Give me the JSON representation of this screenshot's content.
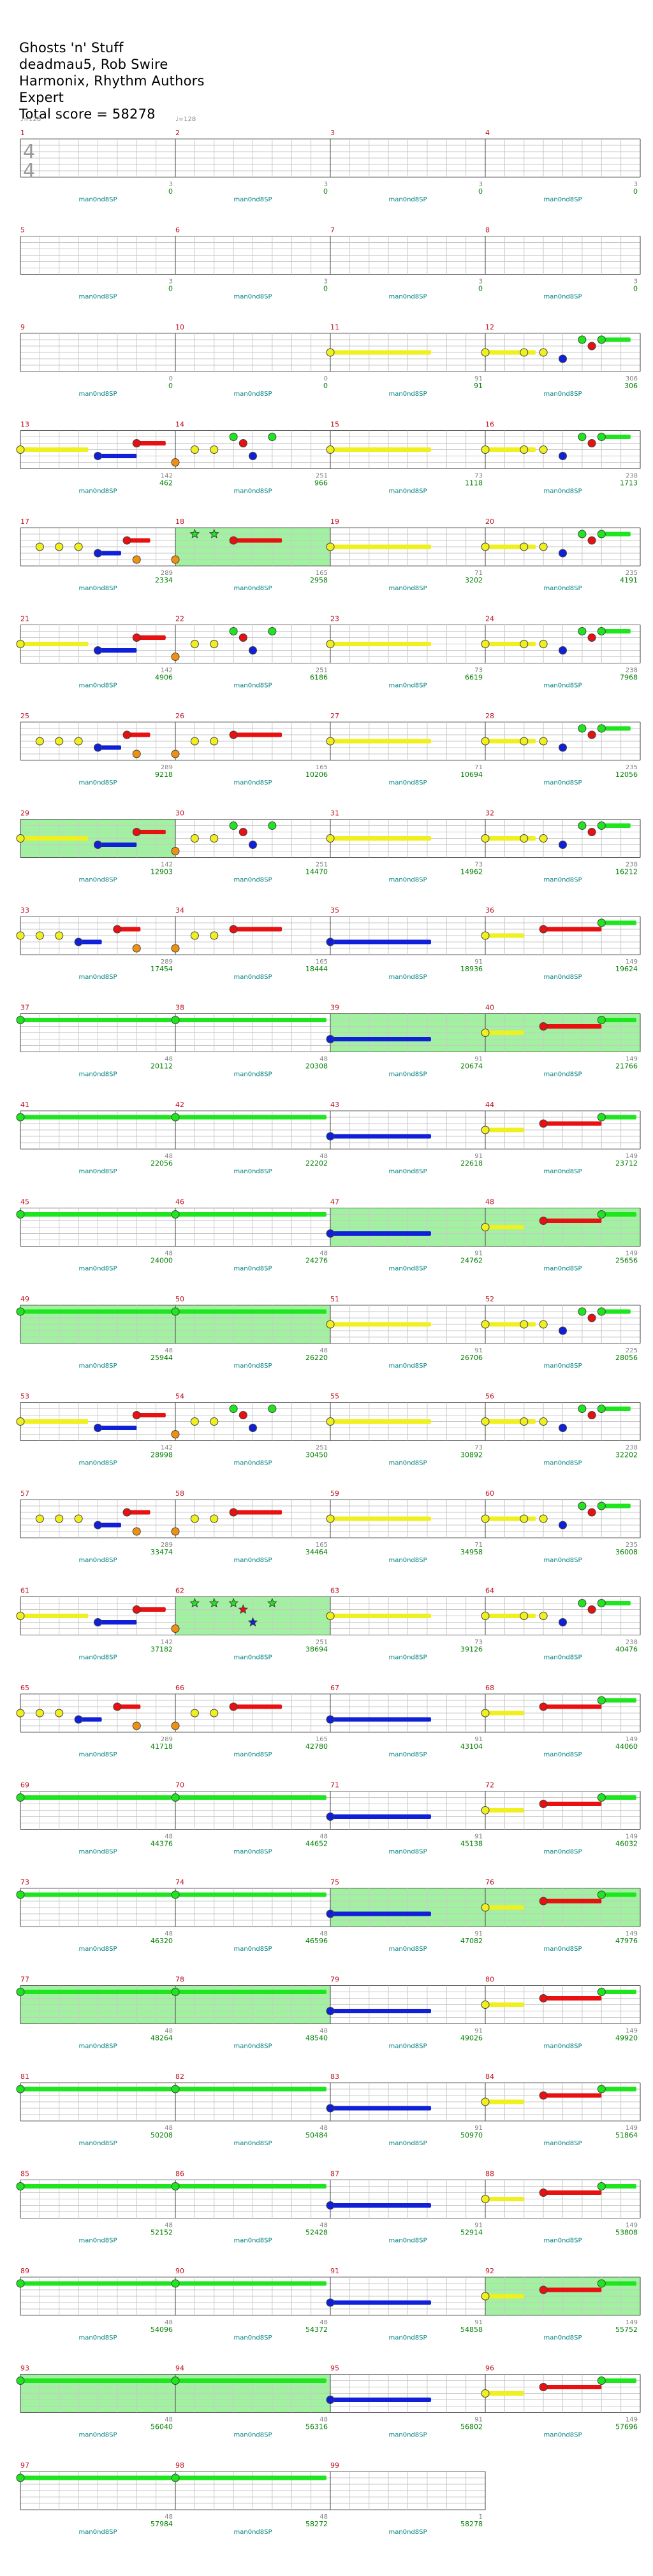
{
  "header": {
    "title": "Ghosts 'n' Stuff",
    "artist": "deadmau5, Rob Swire",
    "authors": "Harmonix, Rhythm Authors",
    "difficulty": "Expert",
    "total_score": "Total score = 58278"
  },
  "time_signature": [
    "4",
    "4"
  ],
  "tempo_label": "♩=128",
  "tempo_marks_measures": [
    1,
    2
  ],
  "notation_label": "man0nd8SP",
  "colors": {
    "green": "#1ee61e",
    "red": "#e81010",
    "yellow": "#f0f020",
    "blue": "#1020d8",
    "orange": "#f09010",
    "sp": "#90ee90",
    "measure_number": "#c01020",
    "score": "#008000",
    "label": "#008080",
    "extra": "#808080",
    "lines": "#606060",
    "grid": "#c8c8c8"
  },
  "patterns": {
    "blank": [],
    "intro": [
      {
        "t": 0,
        "c": "yellow",
        "s": 1.75
      },
      {
        "t": 2,
        "c": "blue",
        "s": 1
      },
      {
        "t": 3,
        "c": "red",
        "s": 0.75
      }
    ],
    "riff_a": [
      {
        "t": 0,
        "c": "yellow",
        "s": 1.3
      },
      {
        "t": 1,
        "c": "yellow"
      },
      {
        "t": 1.5,
        "c": "yellow"
      },
      {
        "t": 2,
        "c": "blue"
      },
      {
        "t": 2.5,
        "c": "green"
      },
      {
        "t": 2.75,
        "c": "red"
      },
      {
        "t": 3,
        "c": "green",
        "s": 0.75
      }
    ],
    "riff_b": [
      {
        "t": 0,
        "c": "yellow",
        "s": 1.2
      },
      {
        "t": 1.5,
        "c": "blue",
        "s": 0.6
      },
      {
        "t": 2.5,
        "c": "red",
        "s": 0.6
      },
      {
        "t": 3,
        "c": "orange"
      }
    ],
    "riff_c": [
      {
        "t": 0.5,
        "c": "yellow"
      },
      {
        "t": 1,
        "c": "yellow"
      },
      {
        "t": 1.5,
        "c": "yellow"
      },
      {
        "t": 2,
        "c": "blue",
        "s": 0.6
      },
      {
        "t": 2.75,
        "c": "red",
        "s": 0.6
      },
      {
        "t": 3,
        "c": "orange"
      }
    ],
    "riff_d": [
      {
        "t": 0,
        "c": "orange"
      },
      {
        "t": 0.5,
        "c": "yellow"
      },
      {
        "t": 1,
        "c": "yellow"
      },
      {
        "t": 1.5,
        "c": "green"
      },
      {
        "t": 1.75,
        "c": "red"
      },
      {
        "t": 2,
        "c": "blue"
      },
      {
        "t": 2.5,
        "c": "green"
      }
    ],
    "riff_e": [
      {
        "t": 0,
        "c": "yellow"
      },
      {
        "t": 0.5,
        "c": "yellow"
      },
      {
        "t": 1,
        "c": "yellow"
      },
      {
        "t": 1.5,
        "c": "blue",
        "s": 0.6
      },
      {
        "t": 2.5,
        "c": "red",
        "s": 0.6
      },
      {
        "t": 3,
        "c": "orange"
      }
    ],
    "riff_f": [
      {
        "t": 0,
        "c": "orange"
      },
      {
        "t": 0.5,
        "c": "yellow"
      },
      {
        "t": 1,
        "c": "yellow"
      },
      {
        "t": 1.5,
        "c": "red",
        "s": 1.25
      }
    ],
    "sustain_yellow": [
      {
        "t": 0,
        "c": "yellow",
        "s": 2.6
      }
    ],
    "sustain_blue": [
      {
        "t": 0,
        "c": "blue",
        "s": 2.6
      }
    ],
    "green_long": [
      {
        "t": 0,
        "c": "green",
        "s": 3.9
      }
    ],
    "climb": [
      {
        "t": 0,
        "c": "yellow",
        "s": 1
      },
      {
        "t": 1.5,
        "c": "red",
        "s": 1.5
      },
      {
        "t": 3,
        "c": "green",
        "s": 0.9
      }
    ],
    "sp_riff": [
      {
        "t": 0,
        "c": "orange"
      },
      {
        "t": 0.5,
        "c": "green",
        "star": 1
      },
      {
        "t": 1,
        "c": "green",
        "star": 1
      },
      {
        "t": 1.5,
        "c": "red",
        "s": 1.25
      }
    ],
    "sp_riff2": [
      {
        "t": 0,
        "c": "orange"
      },
      {
        "t": 0.5,
        "c": "green",
        "star": 1
      },
      {
        "t": 1,
        "c": "green",
        "star": 1
      },
      {
        "t": 1.5,
        "c": "green",
        "star": 1
      },
      {
        "t": 1.75,
        "c": "red",
        "star": 1
      },
      {
        "t": 2,
        "c": "blue",
        "star": 1
      },
      {
        "t": 2.5,
        "c": "green",
        "star": 1
      }
    ]
  },
  "rows": [
    {
      "measures": [
        {
          "n": "1",
          "p": "blank",
          "e": "3",
          "sc": "0",
          "tsig": true
        },
        {
          "n": "2",
          "p": "blank",
          "e": "3",
          "sc": "0"
        },
        {
          "n": "3",
          "p": "blank",
          "e": "3",
          "sc": "0"
        },
        {
          "n": "4",
          "p": "blank",
          "e": "3",
          "sc": "0"
        }
      ]
    },
    {
      "measures": [
        {
          "n": "5",
          "p": "blank",
          "e": "3",
          "sc": "0"
        },
        {
          "n": "6",
          "p": "blank",
          "e": "3",
          "sc": "0"
        },
        {
          "n": "7",
          "p": "blank",
          "e": "3",
          "sc": "0"
        },
        {
          "n": "8",
          "p": "blank",
          "e": "3",
          "sc": "0"
        }
      ]
    },
    {
      "measures": [
        {
          "n": "9",
          "p": "blank",
          "e": "0",
          "sc": "0"
        },
        {
          "n": "10",
          "p": "blank",
          "e": "0",
          "sc": "0"
        },
        {
          "n": "11",
          "p": "sustain_yellow",
          "e": "91",
          "sc": "91"
        },
        {
          "n": "12",
          "p": "riff_a",
          "e": "306",
          "sc": "306"
        }
      ]
    },
    {
      "measures": [
        {
          "n": "13",
          "p": "intro",
          "e": "142",
          "sc": "462"
        },
        {
          "n": "14",
          "p": "riff_d",
          "e": "251",
          "sc": "966"
        },
        {
          "n": "15",
          "p": "sustain_yellow",
          "e": "73",
          "sc": "1118"
        },
        {
          "n": "16",
          "p": "riff_a",
          "e": "238",
          "sc": "1713"
        }
      ]
    },
    {
      "measures": [
        {
          "n": "17",
          "p": "riff_c",
          "e": "289",
          "sc": "2334"
        },
        {
          "n": "18",
          "p": "sp_riff",
          "e": "165",
          "sc": "2958",
          "sp": true
        },
        {
          "n": "19",
          "p": "sustain_yellow",
          "e": "71",
          "sc": "3202"
        },
        {
          "n": "20",
          "p": "riff_a",
          "e": "235",
          "sc": "4191"
        }
      ]
    },
    {
      "measures": [
        {
          "n": "21",
          "p": "intro",
          "e": "142",
          "sc": "4906"
        },
        {
          "n": "22",
          "p": "riff_d",
          "e": "251",
          "sc": "6186"
        },
        {
          "n": "23",
          "p": "sustain_yellow",
          "e": "73",
          "sc": "6619"
        },
        {
          "n": "24",
          "p": "riff_a",
          "e": "238",
          "sc": "7968"
        }
      ]
    },
    {
      "measures": [
        {
          "n": "25",
          "p": "riff_c",
          "e": "289",
          "sc": "9218"
        },
        {
          "n": "26",
          "p": "riff_f",
          "e": "165",
          "sc": "10206"
        },
        {
          "n": "27",
          "p": "sustain_yellow",
          "e": "71",
          "sc": "10694"
        },
        {
          "n": "28",
          "p": "riff_a",
          "e": "235",
          "sc": "12056"
        }
      ]
    },
    {
      "measures": [
        {
          "n": "29",
          "p": "intro",
          "e": "142",
          "sc": "12903",
          "sp": true
        },
        {
          "n": "30",
          "p": "riff_d",
          "e": "251",
          "sc": "14470"
        },
        {
          "n": "31",
          "p": "sustain_yellow",
          "e": "73",
          "sc": "14962"
        },
        {
          "n": "32",
          "p": "riff_a",
          "e": "238",
          "sc": "16212"
        }
      ]
    },
    {
      "measures": [
        {
          "n": "33",
          "p": "riff_e",
          "e": "289",
          "sc": "17454"
        },
        {
          "n": "34",
          "p": "riff_f",
          "e": "165",
          "sc": "18444"
        },
        {
          "n": "35",
          "p": "sustain_blue",
          "e": "91",
          "sc": "18936"
        },
        {
          "n": "36",
          "p": "climb",
          "e": "149",
          "sc": "19624"
        }
      ]
    },
    {
      "measures": [
        {
          "n": "37",
          "p": "green_long",
          "e": "48",
          "sc": "20112"
        },
        {
          "n": "38",
          "p": "green_long",
          "e": "48",
          "sc": "20308"
        },
        {
          "n": "39",
          "p": "sustain_blue",
          "e": "91",
          "sc": "20674",
          "sp": true
        },
        {
          "n": "40",
          "p": "climb",
          "e": "149",
          "sc": "21766",
          "sp": true
        }
      ]
    },
    {
      "measures": [
        {
          "n": "41",
          "p": "green_long",
          "e": "48",
          "sc": "22056"
        },
        {
          "n": "42",
          "p": "green_long",
          "e": "48",
          "sc": "22202"
        },
        {
          "n": "43",
          "p": "sustain_blue",
          "e": "91",
          "sc": "22618"
        },
        {
          "n": "44",
          "p": "climb",
          "e": "149",
          "sc": "23712"
        }
      ]
    },
    {
      "measures": [
        {
          "n": "45",
          "p": "green_long",
          "e": "48",
          "sc": "24000"
        },
        {
          "n": "46",
          "p": "green_long",
          "e": "48",
          "sc": "24276"
        },
        {
          "n": "47",
          "p": "sustain_blue",
          "e": "91",
          "sc": "24762",
          "sp": true
        },
        {
          "n": "48",
          "p": "climb",
          "e": "149",
          "sc": "25656",
          "sp": true
        }
      ]
    },
    {
      "measures": [
        {
          "n": "49",
          "p": "green_long",
          "e": "48",
          "sc": "25944",
          "sp": true
        },
        {
          "n": "50",
          "p": "green_long",
          "e": "48",
          "sc": "26220",
          "sp": true
        },
        {
          "n": "51",
          "p": "sustain_yellow",
          "e": "91",
          "sc": "26706"
        },
        {
          "n": "52",
          "p": "riff_a",
          "e": "225",
          "sc": "28056"
        }
      ]
    },
    {
      "measures": [
        {
          "n": "53",
          "p": "intro",
          "e": "142",
          "sc": "28998"
        },
        {
          "n": "54",
          "p": "riff_d",
          "e": "251",
          "sc": "30450"
        },
        {
          "n": "55",
          "p": "sustain_yellow",
          "e": "73",
          "sc": "30892"
        },
        {
          "n": "56",
          "p": "riff_a",
          "e": "238",
          "sc": "32202"
        }
      ]
    },
    {
      "measures": [
        {
          "n": "57",
          "p": "riff_c",
          "e": "289",
          "sc": "33474"
        },
        {
          "n": "58",
          "p": "riff_f",
          "e": "165",
          "sc": "34464"
        },
        {
          "n": "59",
          "p": "sustain_yellow",
          "e": "71",
          "sc": "34958"
        },
        {
          "n": "60",
          "p": "riff_a",
          "e": "235",
          "sc": "36008"
        }
      ]
    },
    {
      "measures": [
        {
          "n": "61",
          "p": "intro",
          "e": "142",
          "sc": "37182"
        },
        {
          "n": "62",
          "p": "sp_riff2",
          "e": "251",
          "sc": "38694",
          "sp": true
        },
        {
          "n": "63",
          "p": "sustain_yellow",
          "e": "73",
          "sc": "39126"
        },
        {
          "n": "64",
          "p": "riff_a",
          "e": "238",
          "sc": "40476"
        }
      ]
    },
    {
      "measures": [
        {
          "n": "65",
          "p": "riff_e",
          "e": "289",
          "sc": "41718"
        },
        {
          "n": "66",
          "p": "riff_f",
          "e": "165",
          "sc": "42780"
        },
        {
          "n": "67",
          "p": "sustain_blue",
          "e": "91",
          "sc": "43104"
        },
        {
          "n": "68",
          "p": "climb",
          "e": "149",
          "sc": "44060"
        }
      ]
    },
    {
      "measures": [
        {
          "n": "69",
          "p": "green_long",
          "e": "48",
          "sc": "44376"
        },
        {
          "n": "70",
          "p": "green_long",
          "e": "48",
          "sc": "44652"
        },
        {
          "n": "71",
          "p": "sustain_blue",
          "e": "91",
          "sc": "45138"
        },
        {
          "n": "72",
          "p": "climb",
          "e": "149",
          "sc": "46032"
        }
      ]
    },
    {
      "measures": [
        {
          "n": "73",
          "p": "green_long",
          "e": "48",
          "sc": "46320"
        },
        {
          "n": "74",
          "p": "green_long",
          "e": "48",
          "sc": "46596"
        },
        {
          "n": "75",
          "p": "sustain_blue",
          "e": "91",
          "sc": "47082",
          "sp": true
        },
        {
          "n": "76",
          "p": "climb",
          "e": "149",
          "sc": "47976",
          "sp": true
        }
      ]
    },
    {
      "measures": [
        {
          "n": "77",
          "p": "green_long",
          "e": "48",
          "sc": "48264",
          "sp": true
        },
        {
          "n": "78",
          "p": "green_long",
          "e": "48",
          "sc": "48540",
          "sp": true
        },
        {
          "n": "79",
          "p": "sustain_blue",
          "e": "91",
          "sc": "49026"
        },
        {
          "n": "80",
          "p": "climb",
          "e": "149",
          "sc": "49920"
        }
      ]
    },
    {
      "measures": [
        {
          "n": "81",
          "p": "green_long",
          "e": "48",
          "sc": "50208"
        },
        {
          "n": "82",
          "p": "green_long",
          "e": "48",
          "sc": "50484"
        },
        {
          "n": "83",
          "p": "sustain_blue",
          "e": "91",
          "sc": "50970"
        },
        {
          "n": "84",
          "p": "climb",
          "e": "149",
          "sc": "51864"
        }
      ]
    },
    {
      "measures": [
        {
          "n": "85",
          "p": "green_long",
          "e": "48",
          "sc": "52152"
        },
        {
          "n": "86",
          "p": "green_long",
          "e": "48",
          "sc": "52428"
        },
        {
          "n": "87",
          "p": "sustain_blue",
          "e": "91",
          "sc": "52914"
        },
        {
          "n": "88",
          "p": "climb",
          "e": "149",
          "sc": "53808"
        }
      ]
    },
    {
      "measures": [
        {
          "n": "89",
          "p": "green_long",
          "e": "48",
          "sc": "54096"
        },
        {
          "n": "90",
          "p": "green_long",
          "e": "48",
          "sc": "54372"
        },
        {
          "n": "91",
          "p": "sustain_blue",
          "e": "91",
          "sc": "54858"
        },
        {
          "n": "92",
          "p": "climb",
          "e": "149",
          "sc": "55752",
          "sp": true
        }
      ]
    },
    {
      "measures": [
        {
          "n": "93",
          "p": "green_long",
          "e": "48",
          "sc": "56040",
          "sp": true
        },
        {
          "n": "94",
          "p": "green_long",
          "e": "48",
          "sc": "56316",
          "sp": true
        },
        {
          "n": "95",
          "p": "sustain_blue",
          "e": "91",
          "sc": "56802"
        },
        {
          "n": "96",
          "p": "climb",
          "e": "149",
          "sc": "57696"
        }
      ]
    },
    {
      "measures": [
        {
          "n": "97",
          "p": "green_long",
          "e": "48",
          "sc": "57984"
        },
        {
          "n": "98",
          "p": "green_long",
          "e": "48",
          "sc": "58272"
        },
        {
          "n": "99",
          "p": "blank",
          "e": "1",
          "sc": "58278"
        }
      ]
    }
  ]
}
